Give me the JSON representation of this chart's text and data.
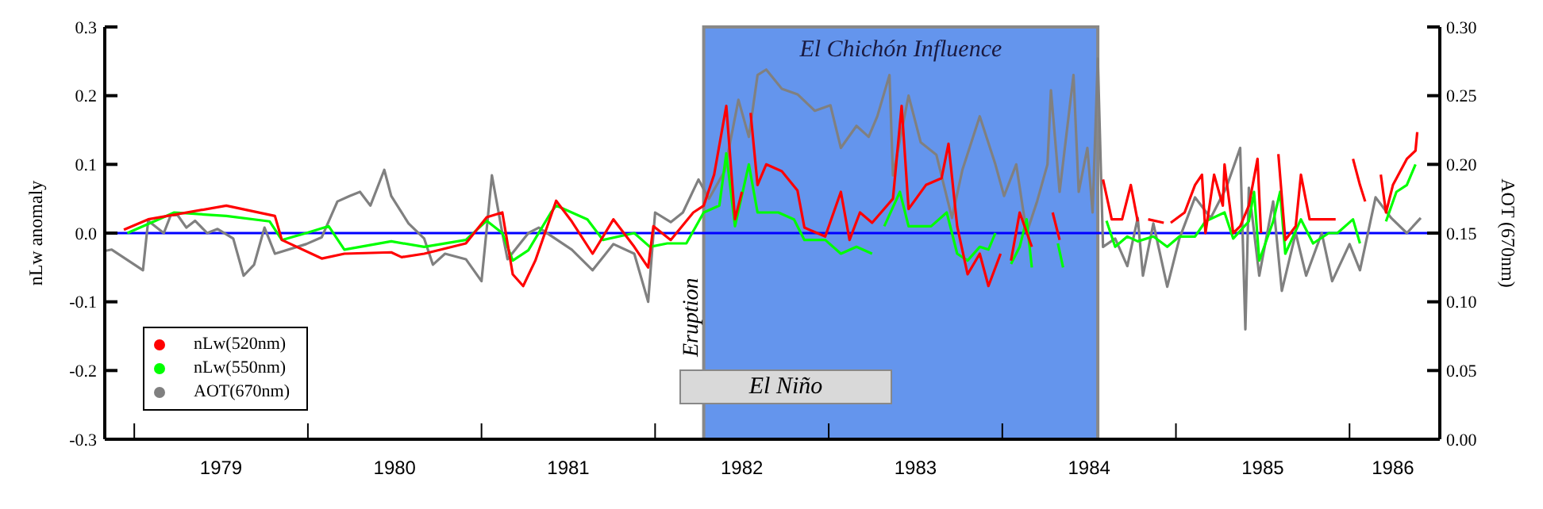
{
  "chart_data": {
    "type": "line",
    "ylabel": "nLw anomaly",
    "y2label": "AOT (670nm)",
    "xlim": [
      1978.83,
      1986.52
    ],
    "xticks": [
      {
        "value": 1979,
        "label": null
      },
      {
        "value": 1979.5,
        "label": "1979"
      },
      {
        "value": 1980,
        "label": null
      },
      {
        "value": 1980.5,
        "label": "1980"
      },
      {
        "value": 1981,
        "label": null
      },
      {
        "value": 1981.5,
        "label": "1981"
      },
      {
        "value": 1982,
        "label": null
      },
      {
        "value": 1982.5,
        "label": "1982"
      },
      {
        "value": 1983,
        "label": null
      },
      {
        "value": 1983.5,
        "label": "1983"
      },
      {
        "value": 1984,
        "label": null
      },
      {
        "value": 1984.5,
        "label": "1984"
      },
      {
        "value": 1985,
        "label": null
      },
      {
        "value": 1985.5,
        "label": "1985"
      },
      {
        "value": 1986,
        "label": null
      },
      {
        "value": 1986.25,
        "label": "1986"
      }
    ],
    "ylim": [
      -0.3,
      0.3
    ],
    "yticks": [
      -0.3,
      -0.2,
      -0.1,
      {
        "value": 0,
        "label": "0.0"
      },
      0.1,
      0.2,
      0.3
    ],
    "y2lim": [
      0,
      0.3
    ],
    "y2ticks": [
      {
        "value": 0,
        "label": "0.00"
      },
      0.05,
      {
        "value": 0.1,
        "label": "0.10"
      },
      0.15,
      {
        "value": 0.2,
        "label": "0.20"
      },
      0.25,
      {
        "value": 0.3,
        "label": "0.30"
      }
    ],
    "series": [
      {
        "name": "nLw(520nm)",
        "color": "#ff0000",
        "x": [
          1978.94,
          1979.08,
          1979.53,
          1979.81,
          1979.85,
          1980.08,
          1980.21,
          1980.48,
          1980.54,
          1980.67,
          1980.91,
          1981.03,
          1981.12,
          1981.18,
          1981.24,
          1981.31,
          1981.43,
          1981.52,
          1981.64,
          1981.76,
          1981.88,
          1981.96,
          1981.99,
          1982.09,
          1982.22,
          1982.28,
          1982.34,
          1982.41,
          1982.46,
          1982.5,
          1982.52,
          1982.55,
          1982.59,
          1982.64,
          1982.73,
          1982.82,
          1982.86,
          1982.98,
          1983.07,
          1983.12,
          1983.18,
          1983.25,
          1983.37,
          1983.42,
          1983.46,
          1983.56,
          1983.65,
          1983.69,
          1983.74,
          1983.8,
          1983.87,
          1983.92,
          1983.99,
          1984.02,
          1984.05,
          1984.1,
          1984.17,
          1984.22,
          1984.29,
          1984.33,
          1984.45,
          1984.58,
          1984.63,
          1984.69,
          1984.74,
          1984.78,
          1984.8,
          1984.84,
          1984.93,
          1984.95,
          1984.97,
          1985.05,
          1985.11,
          1985.15,
          1985.17,
          1985.22,
          1985.27,
          1985.28,
          1985.33,
          1985.37,
          1985.42,
          1985.47,
          1985.49,
          1985.52,
          1985.59,
          1985.63,
          1985.69,
          1985.72,
          1985.77,
          1985.84,
          1985.92,
          1985.97,
          1986.02,
          1986.06,
          1986.09,
          1986.13,
          1986.18,
          1986.21,
          1986.25,
          1986.33,
          1986.38,
          1986.39
        ],
        "values": [
          0.005,
          0.02,
          0.04,
          0.025,
          -0.01,
          -0.037,
          -0.03,
          -0.028,
          -0.035,
          -0.03,
          -0.015,
          0.023,
          0.03,
          -0.06,
          -0.077,
          -0.04,
          0.047,
          0.017,
          -0.03,
          0.02,
          -0.02,
          -0.05,
          0.01,
          -0.01,
          0.03,
          0.04,
          0.085,
          0.185,
          0.02,
          0.06,
          null,
          0.175,
          0.07,
          0.1,
          0.09,
          0.062,
          0.008,
          -0.005,
          0.06,
          -0.01,
          0.03,
          0.015,
          0.05,
          0.185,
          0.035,
          0.07,
          0.08,
          0.13,
          0.01,
          -0.06,
          -0.03,
          -0.077,
          -0.03,
          null,
          -0.04,
          0.03,
          -0.02,
          null,
          0.03,
          -0.01,
          null,
          0.078,
          0.02,
          0.02,
          0.07,
          0.017,
          null,
          0.02,
          0.015,
          null,
          0.015,
          0.03,
          0.07,
          0.085,
          0,
          0.085,
          0.04,
          0.1,
          0,
          0.01,
          0.04,
          0.108,
          0,
          null,
          0.115,
          -0.01,
          0.01,
          0.085,
          0.02,
          0.02,
          0.02,
          null,
          0.108,
          0.07,
          0.046,
          null,
          0.085,
          0.03,
          0.07,
          0.108,
          0.12,
          0.147
        ]
      },
      {
        "name": "nLw(550nm)",
        "color": "#00ff00",
        "x": [
          1978.96,
          1979.14,
          1979.23,
          1979.53,
          1979.78,
          1979.85,
          1979.99,
          1980.12,
          1980.21,
          1980.48,
          1980.67,
          1980.91,
          1981.03,
          1981.12,
          1981.18,
          1981.27,
          1981.4,
          1981.43,
          1981.61,
          1981.7,
          1981.88,
          1981.97,
          1982.07,
          1982.18,
          1982.28,
          1982.37,
          1982.41,
          1982.46,
          1982.54,
          1982.59,
          1982.71,
          1982.8,
          1982.86,
          1982.98,
          1983.07,
          1983.16,
          1983.25,
          1983.28,
          1983.32,
          1983.41,
          1983.46,
          1983.59,
          1983.68,
          1983.74,
          1983.8,
          1983.87,
          1983.92,
          1983.96,
          1984,
          1984.05,
          1984.1,
          1984.14,
          1984.17,
          1984.2,
          1984.32,
          1984.35,
          1984.45,
          1984.6,
          1984.65,
          1984.72,
          1984.78,
          1984.87,
          1984.95,
          1985.02,
          1985.11,
          1985.17,
          1985.28,
          1985.33,
          1985.42,
          1985.45,
          1985.48,
          1985.56,
          1985.6,
          1985.63,
          1985.72,
          1985.79,
          1985.88,
          1985.93,
          1986.02,
          1986.06,
          1986.13,
          1986.21,
          1986.27,
          1986.33,
          1986.38
        ],
        "values": [
          0,
          0.02,
          0.03,
          0.025,
          0.017,
          -0.01,
          0,
          0.01,
          -0.024,
          -0.012,
          -0.02,
          -0.01,
          0.018,
          0,
          -0.04,
          -0.025,
          0.03,
          0.04,
          0.02,
          -0.01,
          0,
          -0.02,
          -0.015,
          -0.015,
          0.03,
          0.04,
          0.116,
          0.01,
          0.1,
          0.03,
          0.03,
          0.02,
          -0.01,
          -0.01,
          -0.03,
          -0.02,
          -0.03,
          null,
          0.01,
          0.06,
          0.01,
          0.01,
          0.03,
          -0.03,
          -0.04,
          -0.02,
          -0.024,
          0,
          null,
          -0.045,
          -0.02,
          0.02,
          -0.05,
          null,
          -0.015,
          -0.05,
          null,
          0.018,
          -0.02,
          -0.005,
          -0.012,
          -0.005,
          -0.02,
          -0.005,
          -0.005,
          0.017,
          0.03,
          -0.008,
          0.017,
          0.06,
          -0.04,
          0.017,
          0.06,
          -0.03,
          0.02,
          -0.015,
          0,
          0,
          0.02,
          -0.015,
          null,
          0.017,
          0.06,
          0.07,
          0.1
        ]
      },
      {
        "name": "AOT(670nm)",
        "color": "#808080",
        "axis": "y2",
        "x": [
          1978.83,
          1978.87,
          1979.05,
          1979.08,
          1979.17,
          1979.21,
          1979.25,
          1979.3,
          1979.35,
          1979.42,
          1979.48,
          1979.57,
          1979.63,
          1979.69,
          1979.75,
          1979.81,
          1979.99,
          1980.08,
          1980.17,
          1980.24,
          1980.3,
          1980.36,
          1980.44,
          1980.48,
          1980.58,
          1980.67,
          1980.72,
          1980.79,
          1980.91,
          1981,
          1981.03,
          1981.06,
          1981.12,
          1981.15,
          1981.27,
          1981.33,
          1981.52,
          1981.64,
          1981.76,
          1981.88,
          1981.96,
          1982,
          1982.09,
          1982.16,
          1982.25,
          1982.31,
          1982.4,
          1982.48,
          1982.54,
          1982.59,
          1982.64,
          1982.73,
          1982.82,
          1982.92,
          1983.01,
          1983.07,
          1983.16,
          1983.23,
          1983.28,
          1983.35,
          1983.37,
          1983.46,
          1983.53,
          1983.62,
          1983.71,
          1983.77,
          1983.87,
          1983.96,
          1984.01,
          1984.08,
          1984.14,
          1984.2,
          1984.26,
          1984.28,
          1984.33,
          1984.41,
          1984.44,
          1984.49,
          1984.52,
          1984.55,
          1984.58,
          1984.65,
          1984.72,
          1984.78,
          1984.81,
          1984.87,
          1984.95,
          1985.02,
          1985.11,
          1985.2,
          1985.29,
          1985.37,
          1985.4,
          1985.42,
          1985.48,
          1985.56,
          1985.61,
          1985.69,
          1985.75,
          1985.84,
          1985.9,
          1986,
          1986.06,
          1986.15,
          1986.24,
          1986.33,
          1986.41
        ],
        "values": [
          0.137,
          0.138,
          0.123,
          0.159,
          0.15,
          0.163,
          0.163,
          0.154,
          0.159,
          0.15,
          0.153,
          0.146,
          0.119,
          0.127,
          0.154,
          0.135,
          0.142,
          0.147,
          0.173,
          0.177,
          0.18,
          0.17,
          0.196,
          0.177,
          0.157,
          0.146,
          0.127,
          0.135,
          0.131,
          0.115,
          0.153,
          0.192,
          0.15,
          0.131,
          0.15,
          0.154,
          0.138,
          0.123,
          0.142,
          0.135,
          0.1,
          0.165,
          0.158,
          0.165,
          0.189,
          0.175,
          0.195,
          0.247,
          0.22,
          0.265,
          0.269,
          0.255,
          0.251,
          0.239,
          0.243,
          0.212,
          0.228,
          0.22,
          0.235,
          0.265,
          0.192,
          0.25,
          0.216,
          0.207,
          0.161,
          0.196,
          0.235,
          0.2,
          0.177,
          0.2,
          0.15,
          0.173,
          0.2,
          0.254,
          0.18,
          0.265,
          0.18,
          0.212,
          0.165,
          0.277,
          0.14,
          0.146,
          0.126,
          0.161,
          0.119,
          0.157,
          0.111,
          0.146,
          0.176,
          0.161,
          0.183,
          0.212,
          0.08,
          0.183,
          0.119,
          0.173,
          0.108,
          0.15,
          0.119,
          0.15,
          0.115,
          0.142,
          0.123,
          0.176,
          0.161,
          0.15,
          0.161
        ]
      }
    ],
    "ref_lines": [
      {
        "axis": "y",
        "value": 0,
        "color": "#0000ff"
      }
    ],
    "bands": [
      {
        "axis": "x",
        "from": 1982.28,
        "to": 1984.55,
        "label": "El Chichón Influence",
        "color": "#6495ed"
      }
    ],
    "annotations": [
      {
        "text": "Eruption",
        "x": 1982.28
      },
      "El Niño"
    ],
    "legend": "bottom left"
  }
}
